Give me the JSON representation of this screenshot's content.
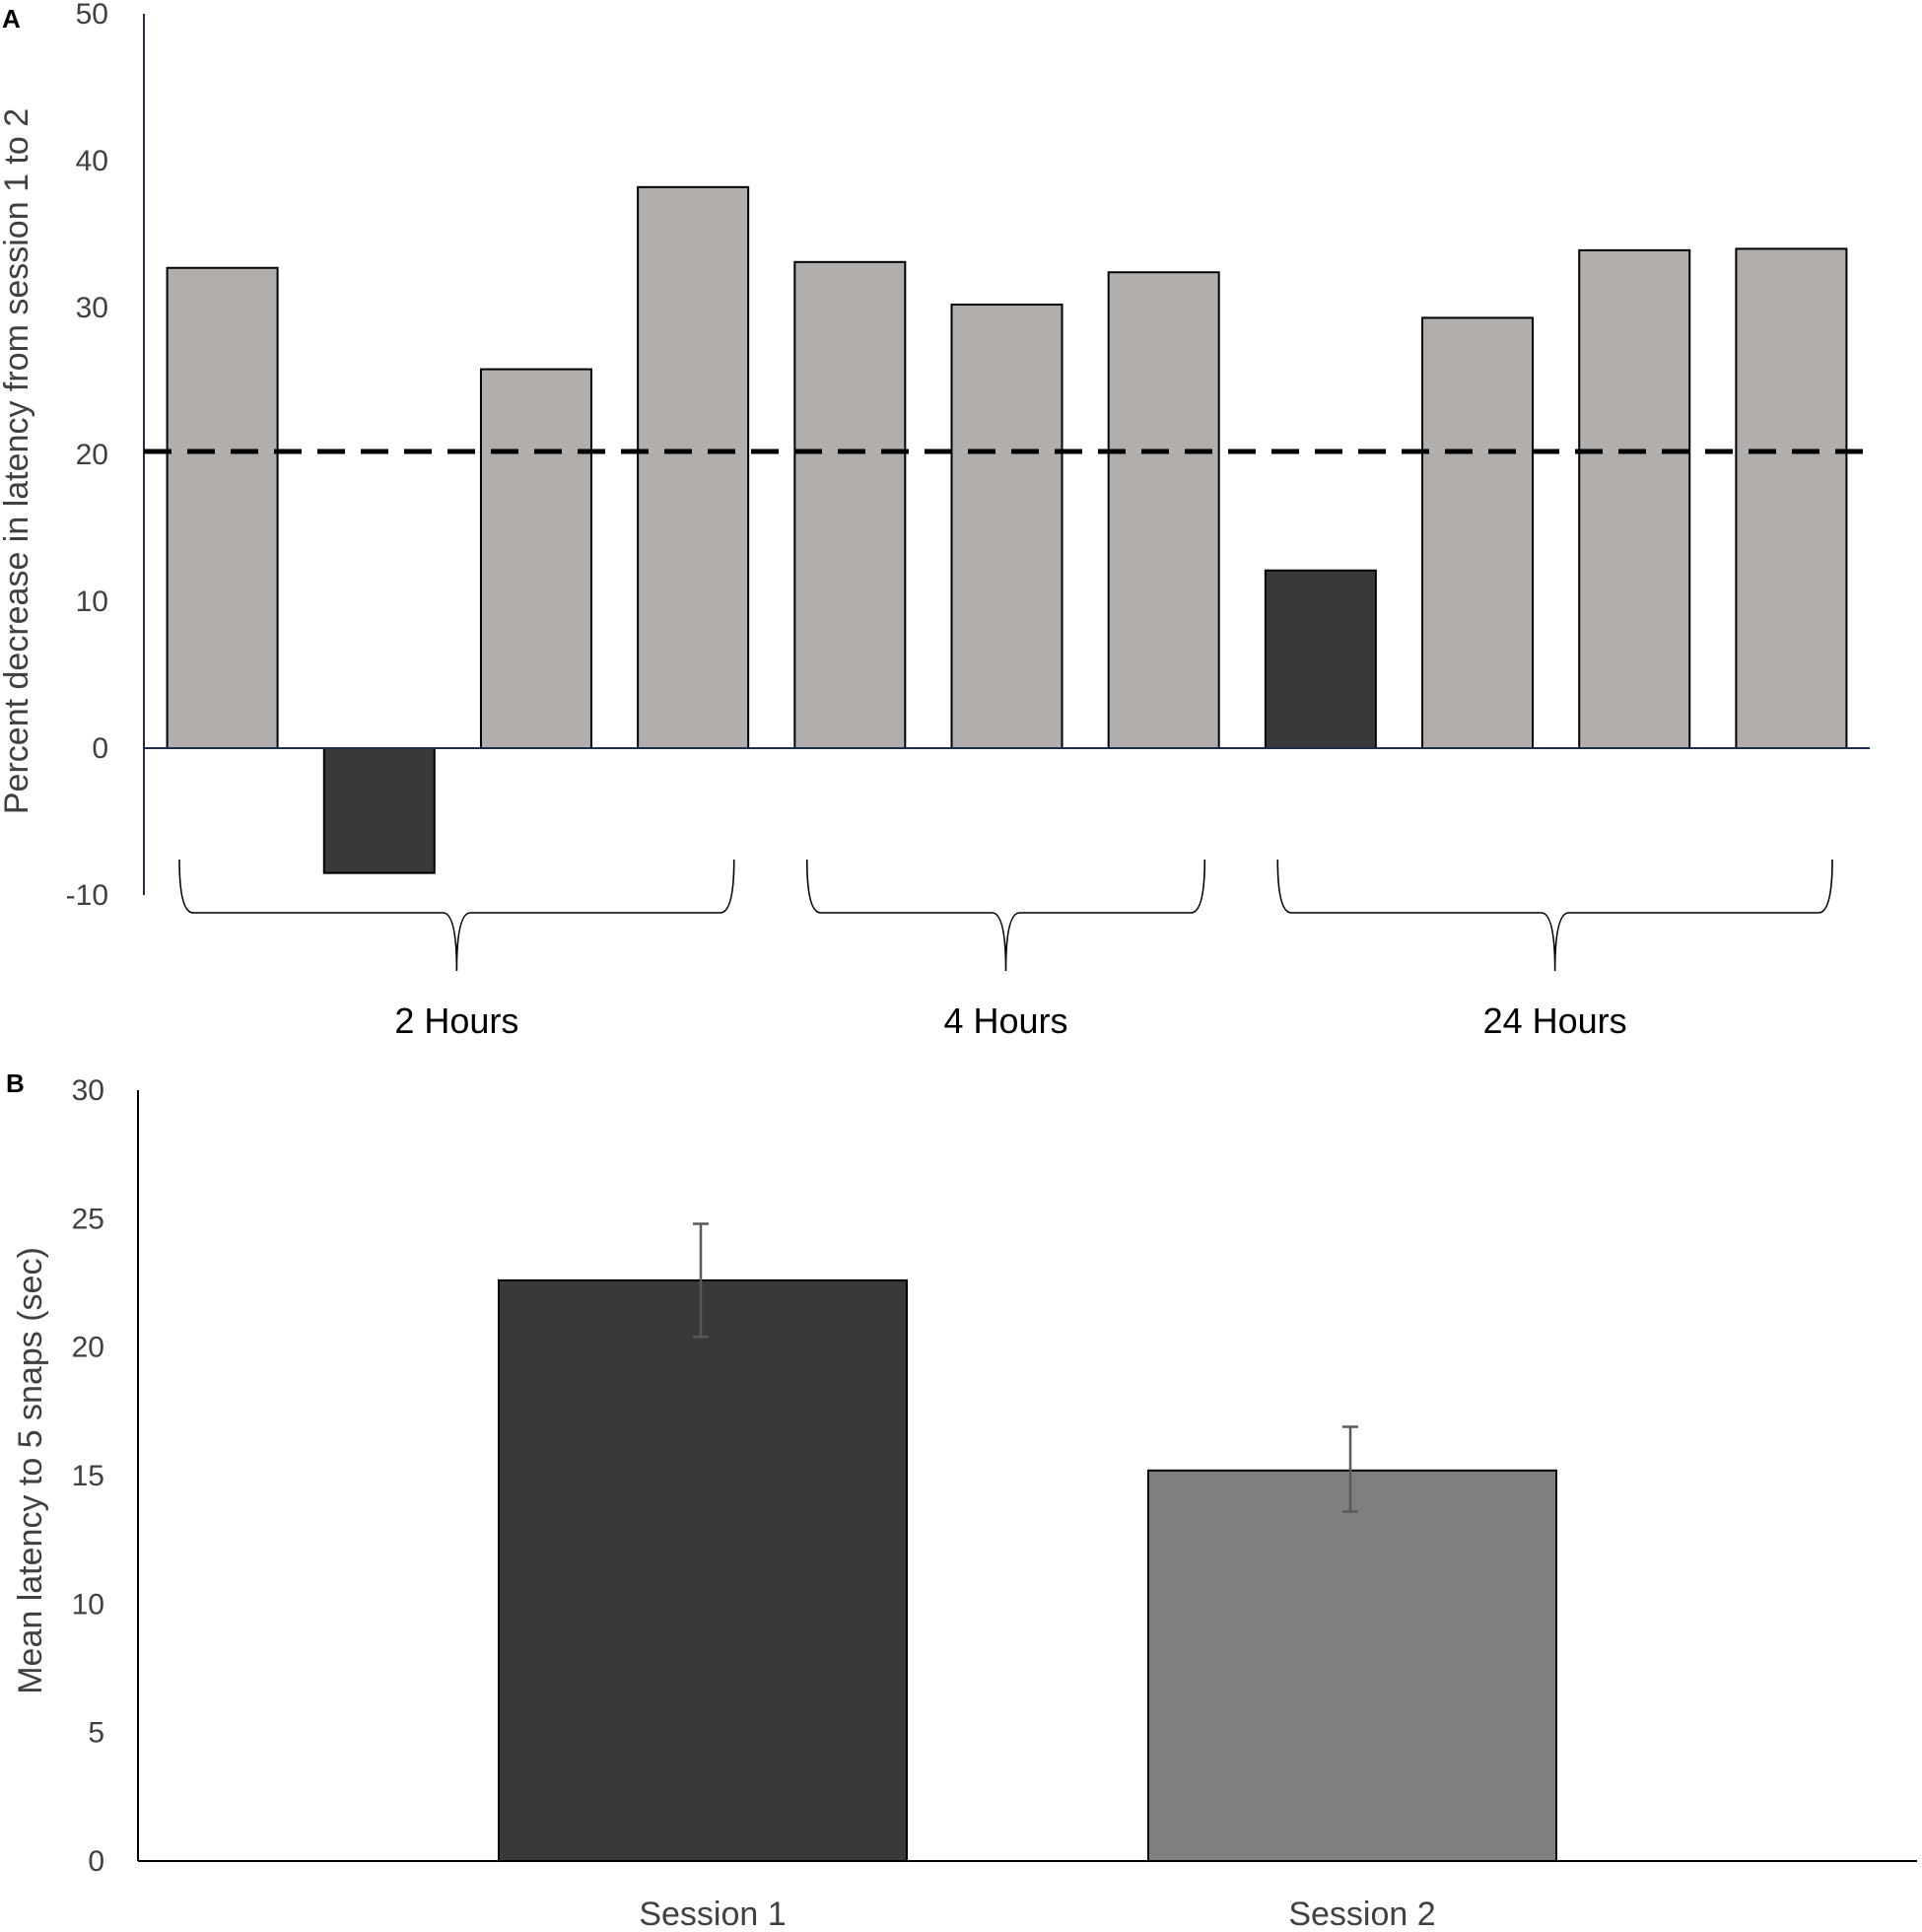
{
  "chart_data": [
    {
      "panel": "A",
      "type": "bar",
      "ylabel": "Percent decrease in latency from session 1 to 2",
      "ylim": [
        -10,
        50
      ],
      "yticks": [
        "50",
        "40",
        "30",
        "20",
        "10",
        "0",
        "-10"
      ],
      "values": [
        32.7,
        -8.5,
        25.8,
        38.2,
        33.1,
        30.2,
        32.4,
        12.1,
        29.3,
        33.9,
        34.0
      ],
      "highlight": [
        false,
        true,
        false,
        false,
        false,
        false,
        false,
        true,
        false,
        false,
        false
      ],
      "reference_line": 20.2,
      "groups": [
        {
          "label": "2 Hours",
          "bars": [
            0,
            3
          ]
        },
        {
          "label": "4 Hours",
          "bars": [
            4,
            6
          ]
        },
        {
          "label": "24 Hours",
          "bars": [
            7,
            10
          ]
        }
      ],
      "colors": {
        "bar": "#b1aeac",
        "highlight": "#393938",
        "reference": "#000000"
      }
    },
    {
      "panel": "B",
      "type": "bar",
      "ylabel": "Mean latency to 5 snaps (sec)",
      "ylim": [
        0,
        30
      ],
      "yticks": [
        "30",
        "25",
        "20",
        "15",
        "10",
        "5",
        "0"
      ],
      "categories": [
        "Session 1",
        "Session 2"
      ],
      "values": [
        22.6,
        15.2
      ],
      "error_low": [
        20.4,
        13.6
      ],
      "error_high": [
        24.8,
        16.9
      ],
      "colors": {
        "session1": "#393938",
        "session2": "#7f7f7f"
      }
    }
  ]
}
